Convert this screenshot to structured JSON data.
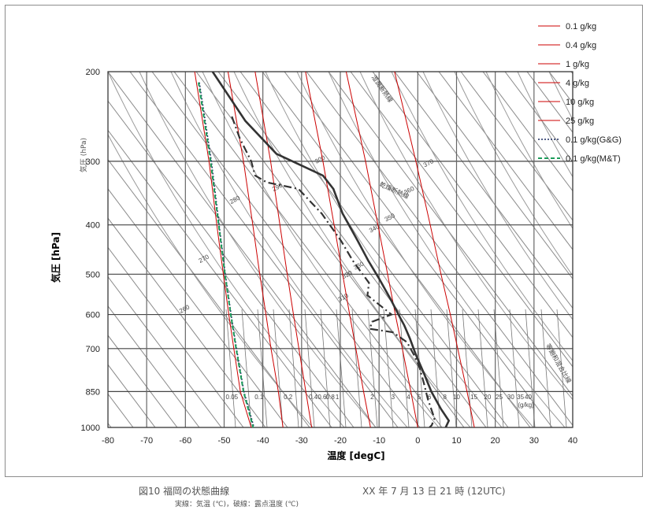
{
  "chart_data": {
    "type": "line",
    "xlabel": "温度 [degC]",
    "ylabel": "気圧 [hPa]",
    "inner_ylabel": "気圧 (hPa)",
    "xlim": [
      -80,
      40
    ],
    "ylim": [
      1000,
      200
    ],
    "y_scale": "log",
    "grid": true,
    "legend_position": "top-right",
    "x_ticks": [
      -80,
      -70,
      -60,
      -50,
      -40,
      -30,
      -20,
      -10,
      0,
      10,
      20,
      30,
      40
    ],
    "y_ticks": [
      200,
      300,
      400,
      500,
      600,
      700,
      850,
      1000
    ],
    "mixing_ratio_labels": [
      "0.05",
      "0.1",
      "0.2",
      "0.4",
      "0.6",
      "0.8",
      "1",
      "2",
      "3",
      "4",
      "5",
      "6",
      "8",
      "10",
      "15",
      "20",
      "25",
      "30",
      "35",
      "40"
    ],
    "mixing_ratio_unit": "(g/kg)",
    "theta_labels": [
      "260",
      "270",
      "280",
      "290",
      "300",
      "310",
      "320",
      "330",
      "340",
      "350",
      "360",
      "370"
    ],
    "diagram_labels": [
      "湿潤断熱線",
      "乾燥断熱線",
      "等飽和混合比線"
    ],
    "series": [
      {
        "name": "0.1 g/kg",
        "style": "solid",
        "color": "#cc0000",
        "points": [
          [
            -57.6,
            200
          ],
          [
            -53.9,
            300
          ],
          [
            -51.9,
            400
          ],
          [
            -50.2,
            500
          ],
          [
            -48.8,
            600
          ],
          [
            -47.5,
            700
          ],
          [
            -45.8,
            850
          ],
          [
            -43.0,
            1000
          ]
        ]
      },
      {
        "name": "0.4 g/kg",
        "style": "solid",
        "color": "#cc0000",
        "points": [
          [
            -49.0,
            200
          ],
          [
            -45.0,
            300
          ],
          [
            -42.6,
            400
          ],
          [
            -40.8,
            500
          ],
          [
            -39.2,
            600
          ],
          [
            -37.9,
            700
          ],
          [
            -36.0,
            850
          ],
          [
            -34.8,
            1000
          ]
        ]
      },
      {
        "name": "1 g/kg",
        "style": "solid",
        "color": "#cc0000",
        "points": [
          [
            -42.0,
            200
          ],
          [
            -38.0,
            300
          ],
          [
            -35.6,
            400
          ],
          [
            -33.7,
            500
          ],
          [
            -32.1,
            600
          ],
          [
            -30.7,
            700
          ],
          [
            -28.9,
            850
          ],
          [
            -27.4,
            1000
          ]
        ]
      },
      {
        "name": "4 g/kg",
        "style": "solid",
        "color": "#cc0000",
        "points": [
          [
            -29.0,
            200
          ],
          [
            -24.5,
            300
          ],
          [
            -21.6,
            400
          ],
          [
            -19.4,
            500
          ],
          [
            -17.6,
            600
          ],
          [
            -16.0,
            700
          ],
          [
            -14.0,
            850
          ],
          [
            -12.2,
            1000
          ]
        ]
      },
      {
        "name": "10 g/kg",
        "style": "solid",
        "color": "#cc0000",
        "points": [
          [
            -18.5,
            200
          ],
          [
            -13.5,
            300
          ],
          [
            -10.3,
            400
          ],
          [
            -7.8,
            500
          ],
          [
            -5.8,
            600
          ],
          [
            -4.0,
            700
          ],
          [
            -1.8,
            850
          ],
          [
            0.0,
            1000
          ]
        ]
      },
      {
        "name": "25 g/kg",
        "style": "solid",
        "color": "#cc0000",
        "points": [
          [
            -6.0,
            200
          ],
          [
            -0.5,
            300
          ],
          [
            3.2,
            400
          ],
          [
            6.0,
            500
          ],
          [
            8.4,
            600
          ],
          [
            10.3,
            700
          ],
          [
            12.7,
            850
          ],
          [
            14.6,
            1000
          ]
        ]
      },
      {
        "name": "0.1 g/kg(G&G)",
        "style": "dotted",
        "color": "#1a2a5e",
        "points": [
          [
            -56.4,
            210
          ],
          [
            -53.3,
            300
          ],
          [
            -51.3,
            400
          ],
          [
            -49.7,
            500
          ],
          [
            -48.2,
            600
          ],
          [
            -46.8,
            700
          ],
          [
            -44.9,
            850
          ],
          [
            -42.3,
            1000
          ]
        ]
      },
      {
        "name": "0.1 g/kg(M&T)",
        "style": "dashed",
        "color": "#1c9c5a",
        "points": [
          [
            -56.6,
            210
          ],
          [
            -53.5,
            300
          ],
          [
            -51.4,
            400
          ],
          [
            -49.8,
            500
          ],
          [
            -48.3,
            600
          ],
          [
            -46.9,
            700
          ],
          [
            -45.0,
            850
          ],
          [
            -42.5,
            1000
          ]
        ]
      },
      {
        "name": "",
        "style": "thick",
        "color": "#333333",
        "points": [
          [
            -53.0,
            200
          ],
          [
            -44.5,
            250
          ],
          [
            -36.5,
            290
          ],
          [
            -24.5,
            320
          ],
          [
            -21.8,
            340
          ],
          [
            -19.4,
            380
          ],
          [
            -15.5,
            430
          ],
          [
            -12.8,
            470
          ],
          [
            -10.0,
            510
          ],
          [
            -7.0,
            560
          ],
          [
            -5.0,
            600
          ],
          [
            -3.5,
            630
          ],
          [
            -2.0,
            670
          ],
          [
            -0.5,
            720
          ],
          [
            1.5,
            780
          ],
          [
            3.5,
            850
          ],
          [
            6.0,
            920
          ],
          [
            8.0,
            970
          ],
          [
            7.2,
            1000
          ]
        ]
      },
      {
        "name": "",
        "style": "dashdot",
        "color": "#333333",
        "points": [
          [
            -48.0,
            245
          ],
          [
            -46.0,
            270
          ],
          [
            -43.0,
            300
          ],
          [
            -42.0,
            320
          ],
          [
            -39.0,
            330
          ],
          [
            -30.8,
            340
          ],
          [
            -24.8,
            380
          ],
          [
            -19.8,
            430
          ],
          [
            -16.8,
            470
          ],
          [
            -12.6,
            520
          ],
          [
            -13.0,
            550
          ],
          [
            -6.8,
            600
          ],
          [
            -11.8,
            620
          ],
          [
            -12.4,
            640
          ],
          [
            -6.5,
            650
          ],
          [
            -2.8,
            680
          ],
          [
            -1.0,
            720
          ],
          [
            0.4,
            760
          ],
          [
            1.6,
            820
          ],
          [
            2.6,
            880
          ],
          [
            4.3,
            960
          ],
          [
            3.6,
            990
          ],
          [
            3.0,
            1000
          ]
        ]
      }
    ]
  },
  "caption": {
    "title": "図10 福岡の状態曲線",
    "date": "XX 年 7 月 13 日 21 時 (12UTC)",
    "subtitle": "実線：気温 (℃)，破線：露点温度 (℃)"
  }
}
